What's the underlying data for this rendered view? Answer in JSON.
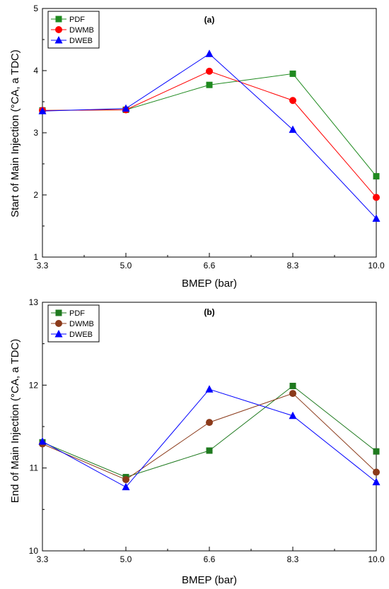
{
  "chart_data": [
    {
      "type": "line",
      "panel_label": "(a)",
      "xlabel": "BMEP (bar)",
      "ylabel": "Start of Main Injection (°CA, a TDC)",
      "categories": [
        "3.3",
        "5.0",
        "6.6",
        "8.3",
        "10.0"
      ],
      "ylim": [
        1,
        5
      ],
      "yticks": [
        "1",
        "2",
        "3",
        "4",
        "5"
      ],
      "grid": false,
      "legend_position": "top-left",
      "series": [
        {
          "name": "PDF",
          "color": "#1f8a1f",
          "marker": "square",
          "values": [
            3.36,
            3.37,
            3.77,
            3.95,
            2.3
          ]
        },
        {
          "name": "DWMB",
          "color": "#ff0000",
          "marker": "circle",
          "values": [
            3.36,
            3.37,
            3.99,
            3.52,
            1.96
          ]
        },
        {
          "name": "DWEB",
          "color": "#0000ff",
          "marker": "triangle",
          "values": [
            3.35,
            3.39,
            4.27,
            3.05,
            1.62
          ]
        }
      ]
    },
    {
      "type": "line",
      "panel_label": "(b)",
      "xlabel": "BMEP (bar)",
      "ylabel": "End of Main Injection (°CA, a TDC)",
      "categories": [
        "3.3",
        "5.0",
        "6.6",
        "8.3",
        "10.0"
      ],
      "ylim": [
        10,
        13
      ],
      "yticks": [
        "10",
        "11",
        "12",
        "13"
      ],
      "grid": false,
      "legend_position": "top-left",
      "series": [
        {
          "name": "PDF",
          "color": "#1f7a1f",
          "marker": "square",
          "values": [
            11.31,
            10.89,
            11.21,
            11.99,
            11.2
          ]
        },
        {
          "name": "DWMB",
          "color": "#8b3a1a",
          "marker": "circle",
          "values": [
            11.29,
            10.86,
            11.55,
            11.9,
            10.95
          ]
        },
        {
          "name": "DWEB",
          "color": "#0000ff",
          "marker": "triangle",
          "values": [
            11.32,
            10.77,
            11.95,
            11.63,
            10.83
          ]
        }
      ]
    }
  ]
}
